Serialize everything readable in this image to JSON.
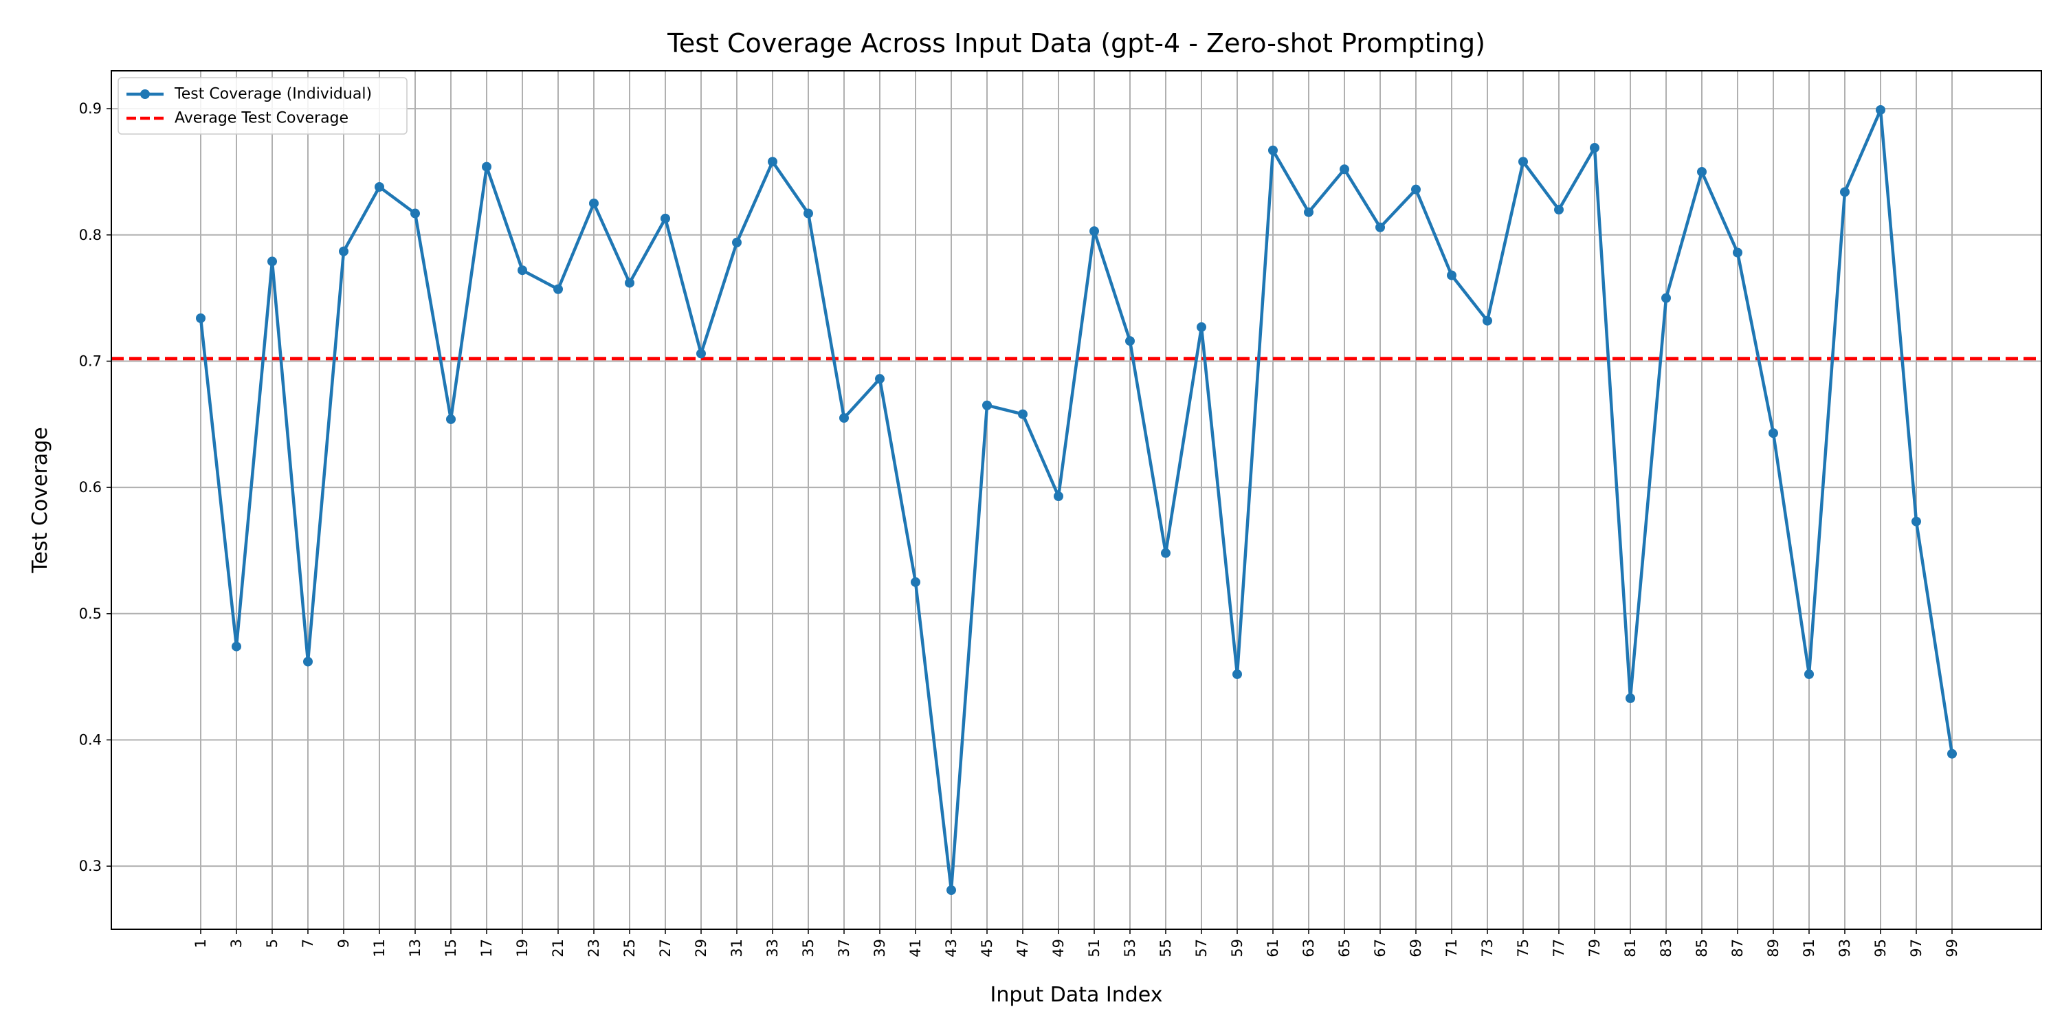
{
  "chart_data": {
    "type": "line",
    "title": "Test Coverage Across Input Data (gpt-4 - Zero-shot Prompting)",
    "xlabel": "Input Data Index",
    "ylabel": "Test Coverage",
    "x": [
      1,
      3,
      5,
      7,
      9,
      11,
      13,
      15,
      17,
      19,
      21,
      23,
      25,
      27,
      29,
      31,
      33,
      35,
      37,
      39,
      41,
      43,
      45,
      47,
      49,
      51,
      53,
      55,
      57,
      59,
      61,
      63,
      65,
      67,
      69,
      71,
      73,
      75,
      77,
      79,
      81,
      83,
      85,
      87,
      89,
      91,
      93,
      95,
      97,
      99
    ],
    "x_tick_labels": [
      "1",
      "3",
      "5",
      "7",
      "9",
      "11",
      "13",
      "15",
      "17",
      "19",
      "21",
      "23",
      "25",
      "27",
      "29",
      "31",
      "33",
      "35",
      "37",
      "39",
      "41",
      "43",
      "45",
      "47",
      "49",
      "51",
      "53",
      "55",
      "57",
      "59",
      "61",
      "63",
      "65",
      "67",
      "69",
      "71",
      "73",
      "75",
      "77",
      "79",
      "81",
      "83",
      "85",
      "87",
      "89",
      "91",
      "93",
      "95",
      "97",
      "99"
    ],
    "xlim": [
      -4,
      104
    ],
    "ylim": [
      0.25,
      0.93
    ],
    "y_ticks": [
      0.3,
      0.4,
      0.5,
      0.6,
      0.7,
      0.8,
      0.9
    ],
    "y_tick_labels": [
      "0.3",
      "0.4",
      "0.5",
      "0.6",
      "0.7",
      "0.8",
      "0.9"
    ],
    "grid": true,
    "legend_position": "top-left",
    "series": [
      {
        "name": "Test Coverage (Individual)",
        "color": "#1f77b4",
        "style": "solid-with-markers",
        "values": [
          0.734,
          0.474,
          0.779,
          0.462,
          0.787,
          0.838,
          0.817,
          0.654,
          0.854,
          0.772,
          0.757,
          0.825,
          0.762,
          0.813,
          0.706,
          0.794,
          0.858,
          0.817,
          0.655,
          0.686,
          0.525,
          0.281,
          0.665,
          0.658,
          0.593,
          0.803,
          0.716,
          0.548,
          0.727,
          0.452,
          0.867,
          0.818,
          0.852,
          0.806,
          0.836,
          0.768,
          0.732,
          0.858,
          0.82,
          0.869,
          0.433,
          0.75,
          0.85,
          0.786,
          0.643,
          0.452,
          0.834,
          0.899,
          0.573,
          0.389
        ]
      },
      {
        "name": "Average Test Coverage",
        "color": "#ff0000",
        "style": "dashed",
        "value": 0.702
      }
    ]
  }
}
